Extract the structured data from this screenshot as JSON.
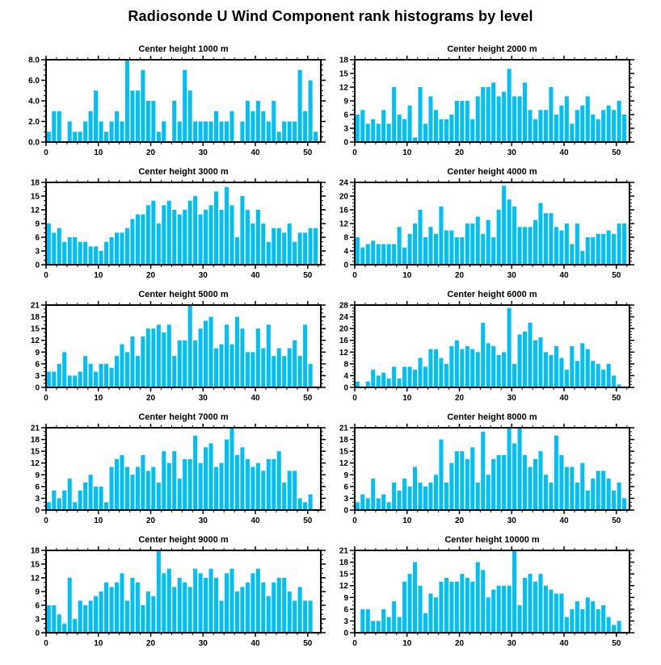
{
  "page_title": "Radiosonde U Wind Component rank histograms by level",
  "colors": {
    "bar": "#00BFF5",
    "axis": "#000000",
    "background": "#FFFFFF",
    "text": "#000000"
  },
  "axis": {
    "x_tick_values": [
      0,
      10,
      20,
      30,
      40,
      50
    ],
    "x_tick_labels": [
      "0",
      "10",
      "20",
      "30",
      "40",
      "50"
    ],
    "x_minor_step": 2,
    "xmax": 52.5,
    "grid": "off",
    "tick_style": "outward-all-sides"
  },
  "chart_data": [
    {
      "type": "bar",
      "title": "Center height 1000 m",
      "xlabel": "",
      "ylabel": "",
      "ylim": [
        0,
        8
      ],
      "y_ticks": [
        0,
        2,
        4,
        6,
        8
      ],
      "y_tick_labels": [
        "0.0",
        "2.0",
        "4.0",
        "6.0",
        "8.0"
      ],
      "y_minor_step": 0.5,
      "values": [
        1,
        3,
        3,
        0,
        2,
        1,
        1,
        2,
        3,
        5,
        2,
        1,
        2,
        3,
        2,
        8,
        5,
        5,
        7,
        4,
        4,
        1,
        2,
        0,
        4,
        2,
        7,
        5,
        2,
        2,
        2,
        2,
        3,
        2,
        2,
        3,
        0,
        2,
        4,
        3,
        4,
        3,
        2,
        4,
        1,
        2,
        2,
        2,
        7,
        3,
        6,
        1
      ]
    },
    {
      "type": "bar",
      "title": "Center height 2000 m",
      "xlabel": "",
      "ylabel": "",
      "ylim": [
        0,
        18
      ],
      "y_ticks": [
        0,
        3,
        6,
        9,
        12,
        15,
        18
      ],
      "y_tick_labels": [
        "0",
        "3",
        "6",
        "9",
        "12",
        "15",
        "18"
      ],
      "y_minor_step": 1,
      "values": [
        6,
        7,
        4,
        5,
        4,
        7,
        4,
        12,
        6,
        5,
        8,
        1,
        12,
        4,
        10,
        7,
        5,
        5,
        6,
        9,
        9,
        9,
        5,
        10,
        12,
        12,
        13,
        10,
        11,
        16,
        10,
        10,
        13,
        7,
        5,
        7,
        7,
        12,
        6,
        8,
        10,
        4,
        7,
        8,
        10,
        6,
        5,
        7,
        8,
        7,
        9,
        6
      ]
    },
    {
      "type": "bar",
      "title": "Center height 3000 m",
      "xlabel": "",
      "ylabel": "",
      "ylim": [
        0,
        18
      ],
      "y_ticks": [
        0,
        3,
        6,
        9,
        12,
        15,
        18
      ],
      "y_tick_labels": [
        "0",
        "3",
        "6",
        "9",
        "12",
        "15",
        "18"
      ],
      "y_minor_step": 1,
      "values": [
        9,
        7,
        8,
        5,
        6,
        6,
        5,
        5,
        4,
        4,
        3,
        5,
        6,
        7,
        7,
        8,
        10,
        11,
        11,
        13,
        14,
        9,
        13,
        14,
        12,
        11,
        12,
        14,
        15,
        11,
        12,
        13,
        16,
        12,
        17,
        13,
        6,
        15,
        12,
        9,
        12,
        9,
        5,
        8,
        8,
        7,
        9,
        5,
        7,
        7,
        8,
        8
      ]
    },
    {
      "type": "bar",
      "title": "Center height 4000 m",
      "xlabel": "",
      "ylabel": "",
      "ylim": [
        0,
        24
      ],
      "y_ticks": [
        0,
        4,
        8,
        12,
        16,
        20,
        24
      ],
      "y_tick_labels": [
        "0",
        "4",
        "8",
        "12",
        "16",
        "20",
        "24"
      ],
      "y_minor_step": 1,
      "values": [
        8,
        5,
        6,
        7,
        6,
        6,
        6,
        6,
        11,
        5,
        9,
        12,
        16,
        8,
        11,
        9,
        17,
        10,
        10,
        8,
        8,
        12,
        12,
        14,
        9,
        13,
        8,
        16,
        23,
        19,
        17,
        11,
        11,
        11,
        13,
        18,
        15,
        15,
        11,
        10,
        12,
        6,
        12,
        4,
        8,
        8,
        9,
        9,
        10,
        9,
        12,
        12
      ]
    },
    {
      "type": "bar",
      "title": "Center height 5000 m",
      "xlabel": "",
      "ylabel": "",
      "ylim": [
        0,
        21
      ],
      "y_ticks": [
        0,
        3,
        6,
        9,
        12,
        15,
        18,
        21
      ],
      "y_tick_labels": [
        "0",
        "3",
        "6",
        "9",
        "12",
        "15",
        "18",
        "21"
      ],
      "y_minor_step": 1,
      "values": [
        4,
        4,
        6,
        9,
        3,
        3,
        4,
        8,
        6,
        4,
        6,
        6,
        5,
        8,
        11,
        9,
        13,
        8,
        13,
        15,
        15,
        16,
        14,
        16,
        8,
        12,
        12,
        21,
        12,
        15,
        17,
        18,
        10,
        11,
        16,
        11,
        18,
        15,
        9,
        9,
        15,
        10,
        16,
        8,
        10,
        8,
        10,
        12,
        8,
        16,
        6
      ]
    },
    {
      "type": "bar",
      "title": "Center height 6000 m",
      "xlabel": "",
      "ylabel": "",
      "ylim": [
        0,
        28
      ],
      "y_ticks": [
        0,
        4,
        8,
        12,
        16,
        20,
        24,
        28
      ],
      "y_tick_labels": [
        "0",
        "4",
        "8",
        "12",
        "16",
        "20",
        "24",
        "28"
      ],
      "y_minor_step": 1,
      "values": [
        2,
        0,
        2,
        6,
        4,
        5,
        3,
        7,
        3,
        7,
        7,
        6,
        10,
        7,
        13,
        13,
        10,
        8,
        14,
        16,
        13,
        14,
        13,
        12,
        22,
        15,
        14,
        11,
        12,
        27,
        8,
        18,
        19,
        22,
        16,
        17,
        12,
        11,
        14,
        10,
        6,
        14,
        9,
        15,
        13,
        9,
        8,
        6,
        8,
        4,
        1
      ]
    },
    {
      "type": "bar",
      "title": "Center height 7000 m",
      "xlabel": "",
      "ylabel": "",
      "ylim": [
        0,
        21
      ],
      "y_ticks": [
        0,
        3,
        6,
        9,
        12,
        15,
        18,
        21
      ],
      "y_tick_labels": [
        "0",
        "3",
        "6",
        "9",
        "12",
        "15",
        "18",
        "21"
      ],
      "y_minor_step": 1,
      "values": [
        2,
        5,
        3,
        5,
        8,
        2,
        5,
        7,
        9,
        6,
        6,
        2,
        11,
        13,
        14,
        11,
        9,
        11,
        14,
        10,
        11,
        7,
        15,
        12,
        15,
        8,
        13,
        13,
        19,
        12,
        16,
        17,
        11,
        12,
        18,
        21,
        14,
        16,
        13,
        11,
        12,
        10,
        13,
        13,
        15,
        7,
        10,
        10,
        3,
        2,
        4
      ]
    },
    {
      "type": "bar",
      "title": "Center height 8000 m",
      "xlabel": "",
      "ylabel": "",
      "ylim": [
        0,
        21
      ],
      "y_ticks": [
        0,
        3,
        6,
        9,
        12,
        15,
        18,
        21
      ],
      "y_tick_labels": [
        "0",
        "3",
        "6",
        "9",
        "12",
        "15",
        "18",
        "21"
      ],
      "y_minor_step": 1,
      "values": [
        2,
        4,
        3,
        8,
        3,
        4,
        2,
        7,
        5,
        8,
        6,
        11,
        7,
        6,
        7,
        9,
        18,
        7,
        12,
        15,
        15,
        13,
        16,
        7,
        20,
        9,
        13,
        14,
        14,
        21,
        17,
        21,
        14,
        11,
        13,
        15,
        9,
        7,
        19,
        14,
        11,
        11,
        7,
        12,
        5,
        8,
        10,
        10,
        8,
        5,
        7,
        3
      ]
    },
    {
      "type": "bar",
      "title": "Center height 9000 m",
      "xlabel": "",
      "ylabel": "",
      "ylim": [
        0,
        18
      ],
      "y_ticks": [
        0,
        3,
        6,
        9,
        12,
        15,
        18
      ],
      "y_tick_labels": [
        "0",
        "3",
        "6",
        "9",
        "12",
        "15",
        "18"
      ],
      "y_minor_step": 1,
      "values": [
        6,
        6,
        4,
        2,
        12,
        3,
        7,
        6,
        7,
        8,
        9,
        11,
        10,
        11,
        13,
        7,
        12,
        11,
        6,
        9,
        8,
        18,
        13,
        14,
        10,
        12,
        11,
        10,
        14,
        13,
        12,
        14,
        12,
        7,
        13,
        14,
        9,
        10,
        11,
        13,
        14,
        11,
        8,
        11,
        12,
        12,
        9,
        7,
        10,
        7,
        7
      ]
    },
    {
      "type": "bar",
      "title": "Center height 10000 m",
      "xlabel": "",
      "ylabel": "",
      "ylim": [
        0,
        21
      ],
      "y_ticks": [
        0,
        3,
        6,
        9,
        12,
        15,
        18,
        21
      ],
      "y_tick_labels": [
        "0",
        "3",
        "6",
        "9",
        "12",
        "15",
        "18",
        "21"
      ],
      "y_minor_step": 1,
      "values": [
        0,
        6,
        6,
        3,
        3,
        6,
        4,
        8,
        4,
        13,
        15,
        18,
        12,
        5,
        10,
        9,
        13,
        14,
        13,
        13,
        15,
        14,
        13,
        18,
        16,
        9,
        11,
        12,
        12,
        12,
        21,
        7,
        14,
        15,
        13,
        15,
        12,
        11,
        10,
        10,
        4,
        6,
        8,
        6,
        9,
        8,
        6,
        7,
        4,
        2,
        3
      ]
    }
  ]
}
